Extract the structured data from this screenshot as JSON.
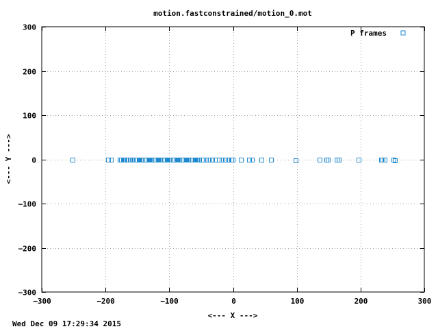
{
  "chart_data": {
    "type": "scatter",
    "title": "motion.fastconstrained/motion_0.mot",
    "xlabel": "<--- X --->",
    "ylabel": "<--- Y --->",
    "xlim": [
      -300,
      300
    ],
    "ylim": [
      -300,
      300
    ],
    "xticks": [
      -300,
      -200,
      -100,
      0,
      100,
      200,
      300
    ],
    "yticks": [
      -300,
      -200,
      -100,
      0,
      100,
      200,
      300
    ],
    "grid": true,
    "legend_position": "top-right",
    "series": [
      {
        "name": "P frames",
        "color": "#1f8ad0",
        "marker": "open-square",
        "points": [
          [
            -252,
            0
          ],
          [
            -196,
            0
          ],
          [
            -192,
            0
          ],
          [
            -178,
            0
          ],
          [
            -175,
            0
          ],
          [
            -172,
            0
          ],
          [
            -170,
            0
          ],
          [
            -168,
            0
          ],
          [
            -165,
            0
          ],
          [
            -162,
            0
          ],
          [
            -160,
            0
          ],
          [
            -158,
            -1
          ],
          [
            -156,
            0
          ],
          [
            -154,
            0
          ],
          [
            -152,
            -1
          ],
          [
            -150,
            0
          ],
          [
            -148,
            0
          ],
          [
            -146,
            -1
          ],
          [
            -144,
            0
          ],
          [
            -142,
            0
          ],
          [
            -140,
            -1
          ],
          [
            -138,
            0
          ],
          [
            -136,
            0
          ],
          [
            -134,
            -1
          ],
          [
            -132,
            0
          ],
          [
            -130,
            0
          ],
          [
            -128,
            -1
          ],
          [
            -126,
            0
          ],
          [
            -124,
            0
          ],
          [
            -122,
            -1
          ],
          [
            -120,
            0
          ],
          [
            -118,
            0
          ],
          [
            -116,
            -1
          ],
          [
            -114,
            0
          ],
          [
            -112,
            0
          ],
          [
            -110,
            -1
          ],
          [
            -108,
            0
          ],
          [
            -106,
            0
          ],
          [
            -104,
            -1
          ],
          [
            -102,
            0
          ],
          [
            -100,
            0
          ],
          [
            -98,
            -1
          ],
          [
            -96,
            0
          ],
          [
            -94,
            0
          ],
          [
            -92,
            -1
          ],
          [
            -90,
            0
          ],
          [
            -88,
            0
          ],
          [
            -86,
            -1
          ],
          [
            -84,
            0
          ],
          [
            -82,
            0
          ],
          [
            -80,
            -1
          ],
          [
            -78,
            0
          ],
          [
            -76,
            0
          ],
          [
            -74,
            -1
          ],
          [
            -72,
            0
          ],
          [
            -70,
            0
          ],
          [
            -68,
            -1
          ],
          [
            -66,
            0
          ],
          [
            -64,
            0
          ],
          [
            -62,
            -1
          ],
          [
            -60,
            0
          ],
          [
            -58,
            0
          ],
          [
            -56,
            -1
          ],
          [
            -54,
            0
          ],
          [
            -47,
            0
          ],
          [
            -42,
            0
          ],
          [
            -38,
            0
          ],
          [
            -33,
            0
          ],
          [
            -28,
            0
          ],
          [
            -22,
            0
          ],
          [
            -18,
            0
          ],
          [
            -12,
            0
          ],
          [
            -8,
            0
          ],
          [
            -3,
            -1
          ],
          [
            -1,
            -1
          ],
          [
            12,
            0
          ],
          [
            25,
            0
          ],
          [
            29,
            0
          ],
          [
            45,
            0
          ],
          [
            60,
            0
          ],
          [
            98,
            -2
          ],
          [
            136,
            0
          ],
          [
            147,
            0
          ],
          [
            149,
            0
          ],
          [
            163,
            0
          ],
          [
            166,
            0
          ],
          [
            197,
            0
          ],
          [
            232,
            0
          ],
          [
            235,
            0
          ],
          [
            238,
            0
          ],
          [
            252,
            -1
          ],
          [
            254,
            -3
          ]
        ]
      }
    ]
  },
  "footer": {
    "timestamp": "Wed Dec 09 17:29:34 2015"
  }
}
